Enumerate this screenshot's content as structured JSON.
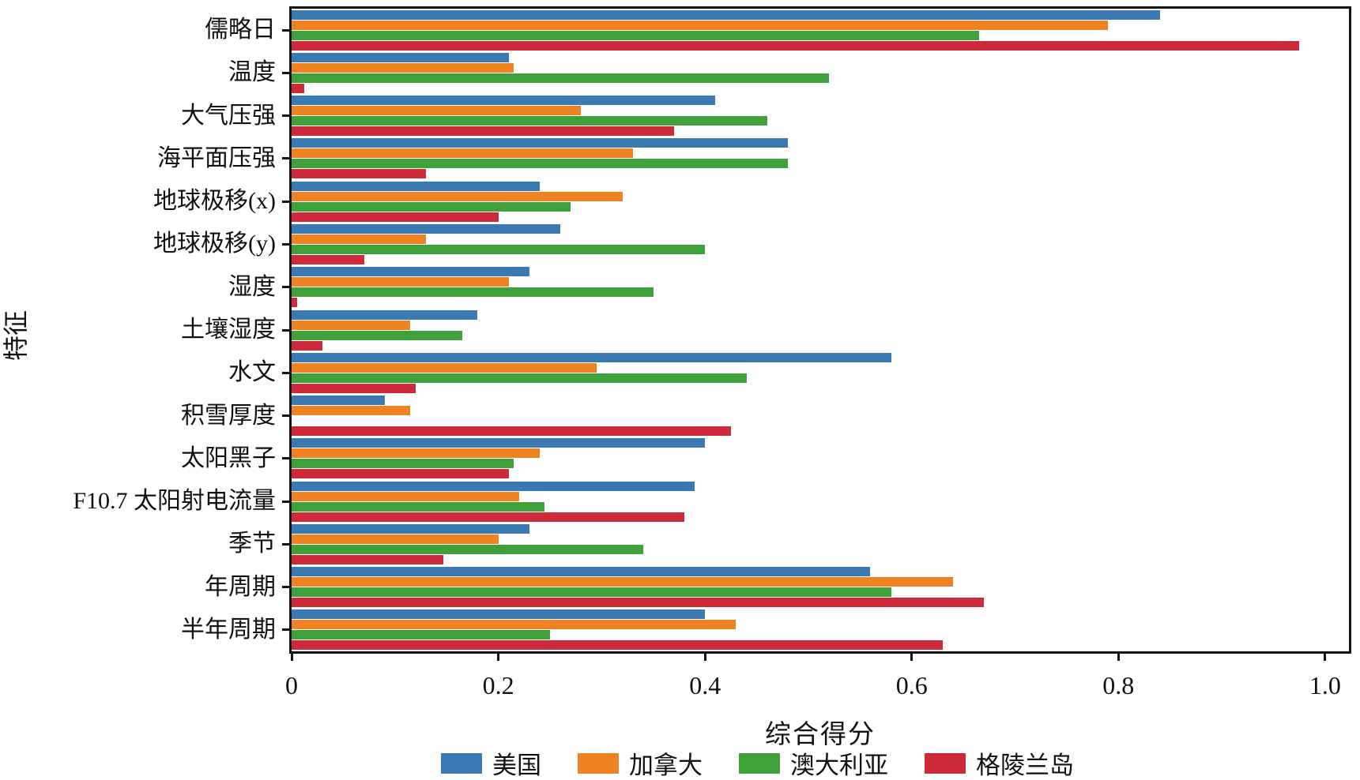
{
  "chart_data": {
    "type": "bar",
    "orientation": "horizontal",
    "title": "",
    "xlabel": "综合得分",
    "ylabel": "特征",
    "grid": false,
    "legend_position": "bottom-center",
    "xlim": [
      0,
      1.023
    ],
    "xticks": [
      0,
      0.2,
      0.4,
      0.6,
      0.8,
      1.0
    ],
    "xtick_labels": [
      "0",
      "0.2",
      "0.4",
      "0.6",
      "0.8",
      "1.0"
    ],
    "categories": [
      "儒略日",
      "温度",
      "大气压强",
      "海平面压强",
      "地球极移(x)",
      "地球极移(y)",
      "湿度",
      "土壤湿度",
      "水文",
      "积雪厚度",
      "太阳黑子",
      "F10.7 太阳射电流量",
      "季节",
      "年周期",
      "半年周期"
    ],
    "series": [
      {
        "name": "美国",
        "color": "#3B79B2",
        "values": [
          0.84,
          0.21,
          0.41,
          0.48,
          0.24,
          0.26,
          0.23,
          0.18,
          0.58,
          0.09,
          0.4,
          0.39,
          0.23,
          0.56,
          0.4
        ]
      },
      {
        "name": "加拿大",
        "color": "#EF8322",
        "values": [
          0.79,
          0.215,
          0.28,
          0.33,
          0.32,
          0.13,
          0.21,
          0.115,
          0.295,
          0.115,
          0.24,
          0.22,
          0.2,
          0.64,
          0.43
        ]
      },
      {
        "name": "澳大利亚",
        "color": "#3FA03C",
        "values": [
          0.665,
          0.52,
          0.46,
          0.48,
          0.27,
          0.4,
          0.35,
          0.165,
          0.44,
          0.0,
          0.215,
          0.245,
          0.34,
          0.58,
          0.25
        ]
      },
      {
        "name": "格陵兰岛",
        "color": "#CE2A3C",
        "values": [
          0.975,
          0.012,
          0.37,
          0.13,
          0.2,
          0.07,
          0.005,
          0.03,
          0.12,
          0.425,
          0.21,
          0.38,
          0.147,
          0.67,
          0.63
        ]
      }
    ]
  }
}
